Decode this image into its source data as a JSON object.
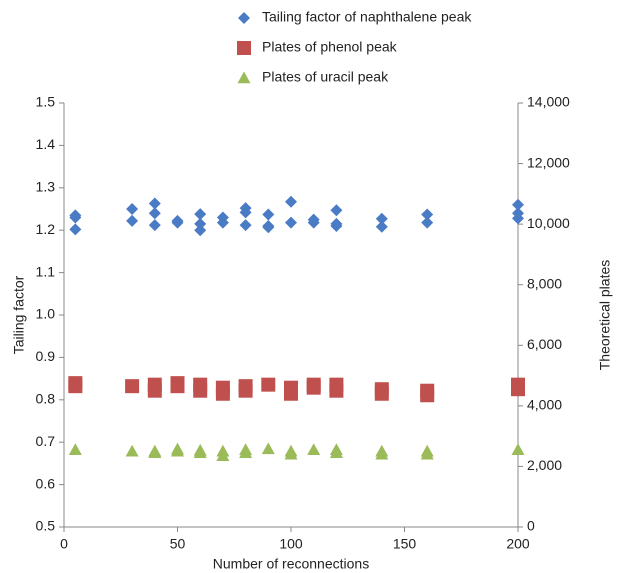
{
  "chart_data": {
    "type": "scatter",
    "xlabel": "Number of reconnections",
    "ylabel": "Tailing factor",
    "y2label": "Theoretical plates",
    "legend": "top",
    "xlim": [
      0,
      200
    ],
    "xticks": [
      0,
      50,
      100,
      150,
      200
    ],
    "ylim": [
      0.5,
      1.5
    ],
    "yticks": [
      0.5,
      0.6,
      0.7,
      0.8,
      0.9,
      {
        "value": 1.0,
        "label": "1.0"
      },
      1.1,
      1.2,
      1.3,
      1.4,
      1.5
    ],
    "y2lim": [
      0,
      14000
    ],
    "y2ticks": [
      0,
      {
        "value": 2000,
        "label": "2,000"
      },
      {
        "value": 4000,
        "label": "4,000"
      },
      {
        "value": 6000,
        "label": "6,000"
      },
      {
        "value": 8000,
        "label": "8,000"
      },
      {
        "value": 10000,
        "label": "10,000"
      },
      {
        "value": 12000,
        "label": "12,000"
      },
      {
        "value": 14000,
        "label": "14,000"
      }
    ],
    "series": [
      {
        "name": "Tailing factor of naphthalene peak",
        "color": "#4a7cc5",
        "marker": "diamond",
        "x": [
          5,
          5,
          5,
          30,
          30,
          40,
          40,
          40,
          50,
          50,
          60,
          60,
          60,
          70,
          70,
          80,
          80,
          80,
          90,
          90,
          90,
          100,
          100,
          110,
          110,
          120,
          120,
          120,
          140,
          140,
          160,
          160,
          200,
          200,
          200
        ],
        "values": [
          1.235,
          1.23,
          1.202,
          1.25,
          1.222,
          1.263,
          1.24,
          1.212,
          1.222,
          1.218,
          1.238,
          1.215,
          1.2,
          1.23,
          1.218,
          1.252,
          1.242,
          1.212,
          1.237,
          1.21,
          1.207,
          1.267,
          1.218,
          1.225,
          1.218,
          1.247,
          1.215,
          1.21,
          1.227,
          1.208,
          1.237,
          1.218,
          1.26,
          1.24,
          1.228
        ]
      },
      {
        "name": "Plates of phenol peak",
        "color": "#c0504d",
        "marker": "square",
        "axis": "y2",
        "x": [
          5,
          5,
          30,
          40,
          40,
          50,
          50,
          60,
          60,
          70,
          70,
          80,
          80,
          90,
          100,
          100,
          110,
          110,
          120,
          120,
          140,
          140,
          160,
          160,
          200,
          200
        ],
        "values": [
          4750,
          4650,
          4650,
          4700,
          4500,
          4750,
          4650,
          4700,
          4500,
          4600,
          4400,
          4650,
          4500,
          4700,
          4600,
          4400,
          4700,
          4600,
          4700,
          4500,
          4550,
          4400,
          4500,
          4350,
          4700,
          4550
        ]
      },
      {
        "name": "Plates of uracil peak",
        "color": "#9bbb59",
        "marker": "triangle",
        "axis": "y2",
        "x": [
          5,
          30,
          40,
          40,
          50,
          50,
          60,
          60,
          70,
          70,
          80,
          80,
          90,
          100,
          100,
          110,
          120,
          120,
          140,
          140,
          160,
          160,
          200
        ],
        "values": [
          2550,
          2500,
          2500,
          2450,
          2570,
          2500,
          2530,
          2450,
          2500,
          2350,
          2550,
          2450,
          2580,
          2500,
          2400,
          2550,
          2550,
          2450,
          2500,
          2400,
          2500,
          2400,
          2550
        ]
      }
    ]
  }
}
